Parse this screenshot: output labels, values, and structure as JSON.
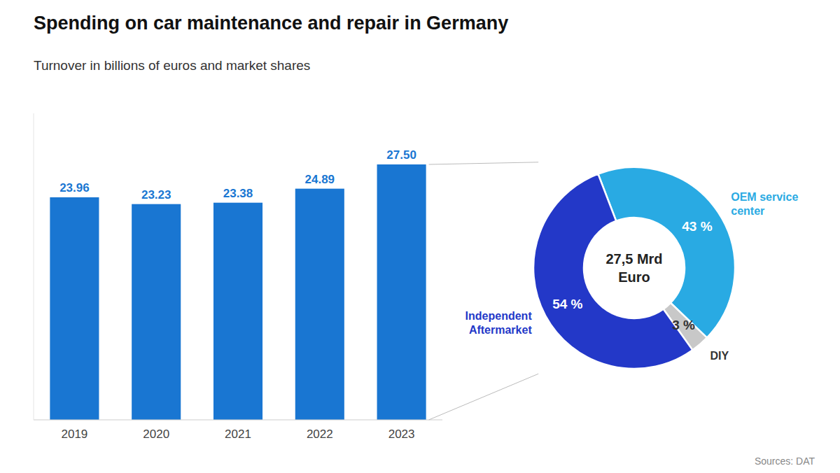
{
  "chart_data": [
    {
      "type": "bar",
      "title": "Spending on car maintenance and repair in Germany",
      "subtitle": "Turnover in billions of euros and market shares",
      "categories": [
        "2019",
        "2020",
        "2021",
        "2022",
        "2023"
      ],
      "values": [
        23.96,
        23.23,
        23.38,
        24.89,
        27.5
      ],
      "value_labels": [
        "23.96",
        "23.23",
        "23.38",
        "24.89",
        "27.50"
      ],
      "color": "#1976d2",
      "data_labels": true,
      "ylim": [
        0,
        33
      ],
      "tick_labels": "x",
      "annotations": [
        "Sources: DAT"
      ]
    },
    {
      "type": "pie",
      "categories": [
        "OEM service\ncenter",
        "DIY",
        "Independent\nAftermarket"
      ],
      "values": [
        43,
        3,
        54
      ],
      "value_labels": [
        "43 %",
        "3 %",
        "54 %"
      ],
      "colors": [
        "#29aae3",
        "#c8c8c8",
        "#2338c8"
      ],
      "data_labels": true,
      "annotations": [
        "27,5 Mrd",
        "Euro"
      ]
    }
  ]
}
